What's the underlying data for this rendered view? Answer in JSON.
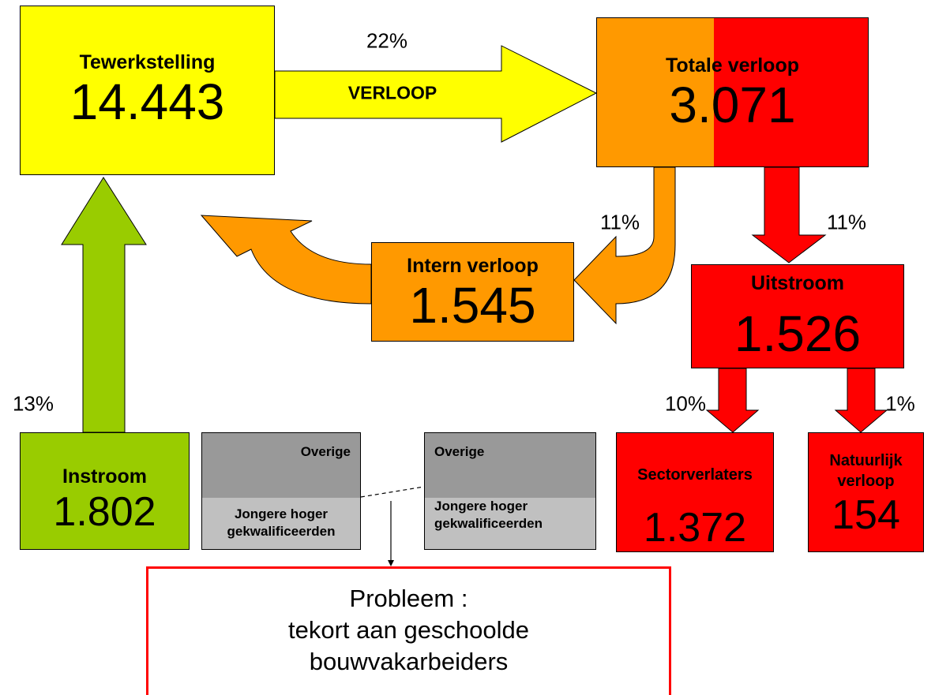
{
  "nodes": {
    "tewerkstelling": {
      "label": "Tewerkstelling",
      "value": "14.443"
    },
    "totale_verloop": {
      "label": "Totale verloop",
      "value": "3.071"
    },
    "intern_verloop": {
      "label": "Intern verloop",
      "value": "1.545"
    },
    "uitstroom": {
      "label": "Uitstroom",
      "value": "1.526"
    },
    "instroom": {
      "label": "Instroom",
      "value": "1.802"
    },
    "sectorverlaters": {
      "label": "Sectorverlaters",
      "value": "1.372"
    },
    "natuurlijk_verloop": {
      "label": [
        "Natuurlijk",
        "verloop"
      ],
      "value": "154"
    }
  },
  "edges": {
    "verloop": {
      "percent": "22%",
      "label": "VERLOOP"
    },
    "intern": {
      "percent": "11%"
    },
    "uitstroom": {
      "percent": "11%"
    },
    "instroom": {
      "percent": "13%"
    },
    "sectorverlaters": {
      "percent": "10%"
    },
    "natuurlijk": {
      "percent": "1%"
    }
  },
  "split_boxes": [
    {
      "top": "Overige",
      "bottom": [
        "Jongere hoger",
        "gekwalificeerden"
      ]
    },
    {
      "top": "Overige",
      "bottom": [
        "Jongere hoger",
        "gekwalificeerden"
      ]
    }
  ],
  "problem": {
    "lines": [
      "Probleem :",
      "tekort aan geschoolde",
      "bouwvakarbeiders"
    ]
  }
}
